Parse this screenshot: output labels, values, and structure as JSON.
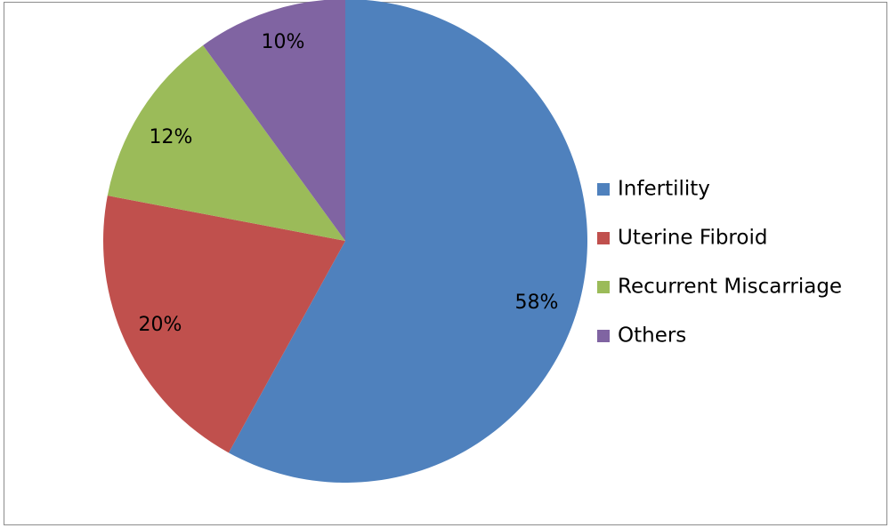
{
  "chart_data": {
    "type": "pie",
    "title": "",
    "categories": [
      "Infertility",
      "Uterine Fibroid",
      "Recurrent Miscarriage",
      "Others"
    ],
    "values": [
      58,
      20,
      12,
      10
    ],
    "data_labels": [
      "58%",
      "20%",
      "12%",
      "10%"
    ],
    "colors": [
      "#4f81bd",
      "#c0504d",
      "#9bbb59",
      "#8064a2"
    ],
    "start": "12 o'clock",
    "direction": "clockwise",
    "legend_position": "right"
  }
}
